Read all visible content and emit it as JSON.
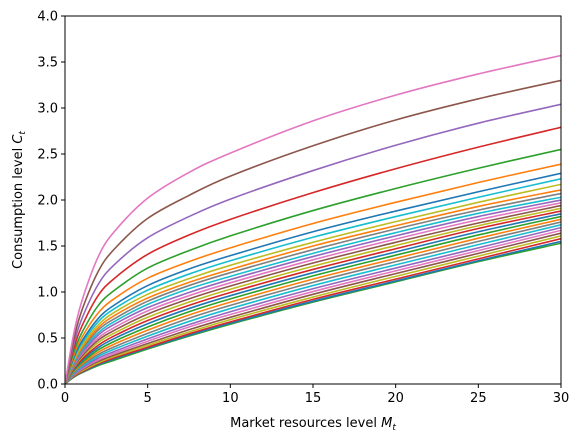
{
  "chart_data": {
    "type": "line",
    "title": "",
    "xlabel": "Market resources level",
    "xlabel_symbol": "M",
    "xlabel_sub": "t",
    "ylabel": "Consumption level",
    "ylabel_symbol": "C",
    "ylabel_sub": "t",
    "xlim": [
      0,
      30
    ],
    "ylim": [
      0,
      4
    ],
    "xticks": [
      0,
      5,
      10,
      15,
      20,
      25,
      30
    ],
    "yticks": [
      0.0,
      0.5,
      1.0,
      1.5,
      2.0,
      2.5,
      3.0,
      3.5,
      4.0
    ],
    "xtick_labels": [
      "0",
      "5",
      "10",
      "15",
      "20",
      "25",
      "30"
    ],
    "ytick_labels": [
      "0.0",
      "0.5",
      "1.0",
      "1.5",
      "2.0",
      "2.5",
      "3.0",
      "3.5",
      "4.0"
    ],
    "grid": false,
    "legend": "none",
    "x": [
      0,
      0.5,
      1,
      2,
      3,
      5,
      7.5,
      10,
      15,
      20,
      25,
      30
    ],
    "series": [
      {
        "color": "#2ca02c",
        "values": [
          0,
          0.07,
          0.12,
          0.2,
          0.26,
          0.38,
          0.52,
          0.65,
          0.89,
          1.11,
          1.33,
          1.53
        ]
      },
      {
        "color": "#1f77b4",
        "values": [
          0,
          0.075,
          0.125,
          0.21,
          0.275,
          0.39,
          0.53,
          0.66,
          0.9,
          1.12,
          1.34,
          1.55
        ]
      },
      {
        "color": "#d62728",
        "values": [
          0,
          0.08,
          0.13,
          0.22,
          0.285,
          0.4,
          0.545,
          0.675,
          0.92,
          1.14,
          1.36,
          1.58
        ]
      },
      {
        "color": "#bcbd22",
        "values": [
          0,
          0.085,
          0.14,
          0.23,
          0.3,
          0.42,
          0.565,
          0.7,
          0.945,
          1.17,
          1.39,
          1.61
        ]
      },
      {
        "color": "#8c564b",
        "values": [
          0,
          0.09,
          0.15,
          0.245,
          0.315,
          0.44,
          0.59,
          0.725,
          0.975,
          1.2,
          1.42,
          1.64
        ]
      },
      {
        "color": "#e377c2",
        "values": [
          0,
          0.095,
          0.16,
          0.26,
          0.335,
          0.465,
          0.62,
          0.755,
          1.005,
          1.23,
          1.45,
          1.67
        ]
      },
      {
        "color": "#9467bd",
        "values": [
          0,
          0.1,
          0.17,
          0.28,
          0.355,
          0.49,
          0.645,
          0.785,
          1.035,
          1.26,
          1.48,
          1.7
        ]
      },
      {
        "color": "#17becf",
        "values": [
          0,
          0.11,
          0.185,
          0.3,
          0.38,
          0.52,
          0.68,
          0.82,
          1.07,
          1.295,
          1.515,
          1.73
        ]
      },
      {
        "color": "#7f7f7f",
        "values": [
          0,
          0.12,
          0.2,
          0.32,
          0.405,
          0.55,
          0.715,
          0.855,
          1.105,
          1.33,
          1.55,
          1.76
        ]
      },
      {
        "color": "#ff7f0e",
        "values": [
          0,
          0.13,
          0.215,
          0.345,
          0.435,
          0.585,
          0.75,
          0.89,
          1.14,
          1.365,
          1.585,
          1.79
        ]
      },
      {
        "color": "#2ca02c",
        "values": [
          0,
          0.14,
          0.23,
          0.37,
          0.465,
          0.62,
          0.785,
          0.925,
          1.175,
          1.4,
          1.62,
          1.82
        ]
      },
      {
        "color": "#1f77b4",
        "values": [
          0,
          0.15,
          0.25,
          0.395,
          0.495,
          0.655,
          0.82,
          0.96,
          1.21,
          1.435,
          1.655,
          1.85
        ]
      },
      {
        "color": "#d62728",
        "values": [
          0,
          0.16,
          0.265,
          0.42,
          0.525,
          0.69,
          0.855,
          0.995,
          1.245,
          1.47,
          1.69,
          1.88
        ]
      },
      {
        "color": "#bcbd22",
        "values": [
          0,
          0.17,
          0.285,
          0.45,
          0.555,
          0.725,
          0.89,
          1.03,
          1.28,
          1.505,
          1.72,
          1.91
        ]
      },
      {
        "color": "#8c564b",
        "values": [
          0,
          0.18,
          0.3,
          0.475,
          0.585,
          0.76,
          0.925,
          1.065,
          1.315,
          1.54,
          1.75,
          1.94
        ]
      },
      {
        "color": "#e377c2",
        "values": [
          0,
          0.19,
          0.32,
          0.5,
          0.615,
          0.795,
          0.96,
          1.1,
          1.35,
          1.575,
          1.785,
          1.97
        ]
      },
      {
        "color": "#9467bd",
        "values": [
          0,
          0.2,
          0.335,
          0.53,
          0.65,
          0.83,
          0.995,
          1.135,
          1.385,
          1.61,
          1.82,
          2.0
        ]
      },
      {
        "color": "#17becf",
        "values": [
          0,
          0.21,
          0.355,
          0.555,
          0.68,
          0.865,
          1.035,
          1.17,
          1.42,
          1.645,
          1.855,
          2.03
        ]
      },
      {
        "color": "#7f7f7f",
        "values": [
          0,
          0.22,
          0.37,
          0.585,
          0.71,
          0.9,
          1.07,
          1.21,
          1.46,
          1.685,
          1.89,
          2.07
        ]
      },
      {
        "color": "#ff7f0e",
        "values": [
          0,
          0.23,
          0.39,
          0.61,
          0.745,
          0.935,
          1.105,
          1.245,
          1.5,
          1.72,
          1.93,
          2.11
        ]
      },
      {
        "color": "#bcbd22",
        "values": [
          0,
          0.245,
          0.41,
          0.64,
          0.78,
          0.975,
          1.145,
          1.29,
          1.54,
          1.765,
          1.975,
          2.17
        ]
      },
      {
        "color": "#17becf",
        "values": [
          0,
          0.26,
          0.435,
          0.675,
          0.82,
          1.02,
          1.195,
          1.34,
          1.595,
          1.82,
          2.03,
          2.23
        ]
      },
      {
        "color": "#1f77b4",
        "values": [
          0,
          0.275,
          0.46,
          0.71,
          0.86,
          1.07,
          1.25,
          1.395,
          1.655,
          1.88,
          2.09,
          2.29
        ]
      },
      {
        "color": "#ff7f0e",
        "values": [
          0,
          0.3,
          0.5,
          0.77,
          0.93,
          1.15,
          1.33,
          1.48,
          1.745,
          1.975,
          2.19,
          2.39
        ]
      },
      {
        "color": "#2ca02c",
        "values": [
          0,
          0.33,
          0.55,
          0.85,
          1.02,
          1.26,
          1.45,
          1.61,
          1.885,
          2.125,
          2.345,
          2.55
        ]
      },
      {
        "color": "#d62728",
        "values": [
          0,
          0.37,
          0.62,
          0.96,
          1.15,
          1.41,
          1.62,
          1.79,
          2.08,
          2.34,
          2.575,
          2.79
        ]
      },
      {
        "color": "#9467bd",
        "values": [
          0,
          0.41,
          0.7,
          1.08,
          1.3,
          1.59,
          1.82,
          2.01,
          2.32,
          2.595,
          2.835,
          3.04
        ]
      },
      {
        "color": "#8c564b",
        "values": [
          0,
          0.46,
          0.79,
          1.22,
          1.47,
          1.8,
          2.05,
          2.26,
          2.59,
          2.87,
          3.1,
          3.3
        ]
      },
      {
        "color": "#e377c2",
        "values": [
          0,
          0.52,
          0.89,
          1.38,
          1.66,
          2.02,
          2.3,
          2.51,
          2.86,
          3.14,
          3.37,
          3.57
        ]
      }
    ]
  }
}
